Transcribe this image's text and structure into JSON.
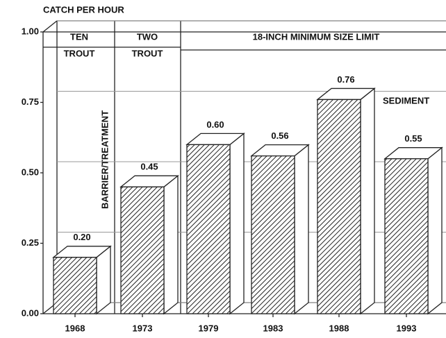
{
  "chart_data": {
    "type": "bar3d",
    "ylabel": "CATCH PER HOUR",
    "categories": [
      "1968",
      "1973",
      "1979",
      "1983",
      "1988",
      "1993"
    ],
    "values": [
      0.2,
      0.45,
      0.6,
      0.56,
      0.76,
      0.55
    ],
    "value_labels": [
      "0.20",
      "0.45",
      "0.60",
      "0.56",
      "0.76",
      "0.55"
    ],
    "color": "#222222",
    "ylim": [
      0,
      1
    ],
    "yticks": [
      {
        "value": 0,
        "label": "0.00"
      },
      {
        "value": 0.25,
        "label": "0.25"
      },
      {
        "value": 0.5,
        "label": "0.50"
      },
      {
        "value": 0.75,
        "label": "0.75"
      },
      {
        "value": 1,
        "label": "1.00"
      }
    ],
    "grid": true,
    "annotations": [
      "TEN",
      "TROUT",
      "TWO",
      "TROUT",
      "18-INCH MINIMUM SIZE LIMIT",
      "BARRIER/TREATMENT",
      "SEDIMENT"
    ]
  }
}
